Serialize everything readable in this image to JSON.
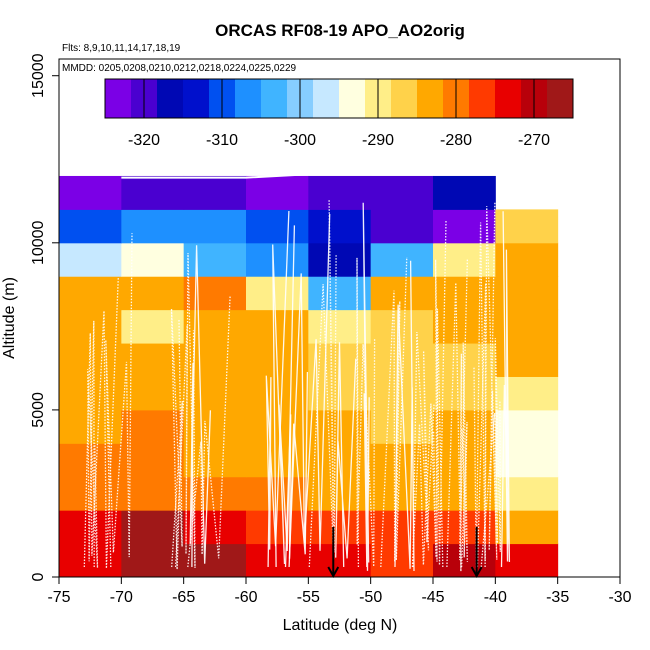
{
  "chart_data": {
    "type": "heatmap",
    "title": "ORCAS RF08-19 APO_AO2orig",
    "annotations": {
      "flights": "Flts: 8,9,10,11,14,17,18,19",
      "dates": "MMDD: 0205,0208,0210,0212,0218,0224,0225,0229"
    },
    "xlabel": "Latitude (deg N)",
    "ylabel": "Altitude (m)",
    "xlim": [
      -75,
      -30
    ],
    "ylim": [
      0,
      15500
    ],
    "x_ticks": [
      -75,
      -70,
      -65,
      -60,
      -55,
      -50,
      -45,
      -40,
      -35,
      -30
    ],
    "x_tick_labels": [
      "-75",
      "-70",
      "-65",
      "-60",
      "-55",
      "-50",
      "-45",
      "-40",
      "-35",
      "-30"
    ],
    "y_ticks": [
      0,
      5000,
      10000,
      15000
    ],
    "y_tick_labels": [
      "0",
      "5000",
      "10000",
      "15000"
    ],
    "colorbar": {
      "min": -325,
      "max": -265,
      "ticks": [
        -320,
        -310,
        -300,
        -290,
        -280,
        -270
      ],
      "tick_labels": [
        "-320",
        "-310",
        "-300",
        "-290",
        "-280",
        "-270"
      ],
      "colors": [
        "#7b00e6",
        "#4a00d0",
        "#0008b4",
        "#0010cc",
        "#0050f0",
        "#1e90ff",
        "#40b4ff",
        "#86cdff",
        "#c6e8ff",
        "#ffffe0",
        "#ffee88",
        "#ffd24a",
        "#ffa800",
        "#ff7a00",
        "#ff3a00",
        "#e80000",
        "#b8000a",
        "#a01818"
      ]
    },
    "lat_bins": [
      -75,
      -70,
      -65,
      -60,
      -55,
      -50,
      -45,
      -40,
      -35
    ],
    "alt_bins": [
      0,
      1000,
      2000,
      3000,
      4000,
      5000,
      6000,
      7000,
      8000,
      9000,
      10000,
      11000,
      12000
    ],
    "cells": [
      [
        -272,
        -268,
        -268,
        -272,
        -275,
        -277,
        -271,
        -275
      ],
      [
        -273,
        -268,
        -272,
        -276,
        -276,
        -277,
        -277,
        -284
      ],
      [
        -279,
        -280,
        -280,
        -281,
        -283,
        -283,
        -283,
        -291
      ],
      [
        -280,
        -281,
        -283,
        -283,
        -285,
        -285,
        -284,
        -292
      ],
      [
        -283,
        -281,
        -283,
        -284,
        -285,
        -286,
        -285,
        -292
      ],
      [
        -285,
        -282,
        -284,
        -284,
        -286,
        -287,
        -286,
        -289
      ],
      [
        -285,
        -283,
        -284,
        -285,
        -286,
        -287,
        -286,
        -285
      ],
      [
        -283,
        -289,
        -282,
        -285,
        -289,
        -288,
        -285,
        -285
      ],
      [
        -282,
        -283,
        -281,
        -289,
        -304,
        -283,
        -284,
        -283
      ],
      [
        -296,
        -293,
        -304,
        -306,
        -317,
        -302,
        -289,
        -283
      ],
      [
        -309,
        -308,
        -308,
        -309,
        -313,
        -319,
        -322,
        -288
      ],
      [
        -322,
        -320,
        -320,
        -322,
        -321,
        -319,
        -318,
        null
      ]
    ],
    "arrows": [
      -53,
      -41.5
    ]
  }
}
